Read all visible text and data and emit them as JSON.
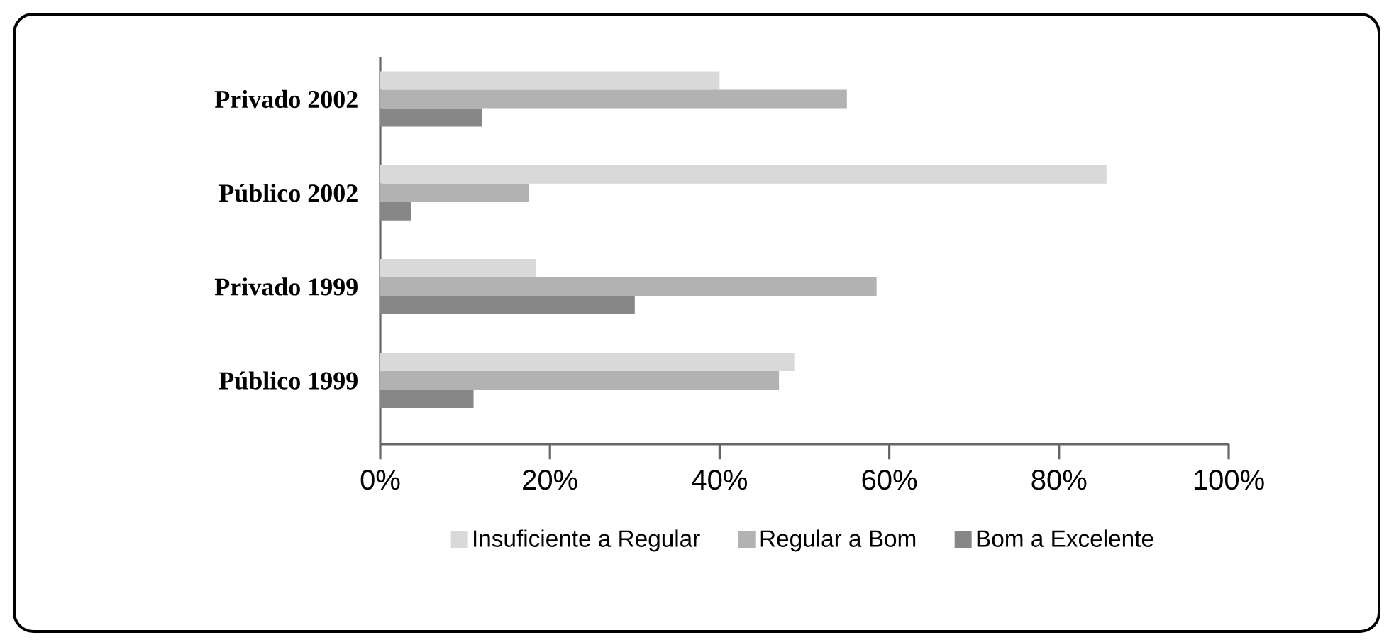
{
  "chart_data": {
    "type": "bar",
    "orientation": "horizontal",
    "categories": [
      "Privado 2002",
      "Público 2002",
      "Privado 1999",
      "Público 1999"
    ],
    "series": [
      {
        "name": "Insuficiente a Regular",
        "color": "#d9d9d9",
        "values": [
          40,
          85.6,
          18.4,
          48.8
        ]
      },
      {
        "name": "Regular a Bom",
        "color": "#b2b2b2",
        "values": [
          55,
          17.5,
          58.5,
          47
        ]
      },
      {
        "name": "Bom a Excelente",
        "color": "#878787",
        "values": [
          12,
          3.6,
          30,
          11
        ]
      }
    ],
    "xlim": [
      0,
      100
    ],
    "xticks": [
      {
        "value": 0,
        "label": "0%"
      },
      {
        "value": 20,
        "label": "20%"
      },
      {
        "value": 40,
        "label": "40%"
      },
      {
        "value": 60,
        "label": "60%"
      },
      {
        "value": 80,
        "label": "80%"
      },
      {
        "value": 100,
        "label": "100%"
      }
    ],
    "grid": false,
    "legend": "bottom"
  }
}
